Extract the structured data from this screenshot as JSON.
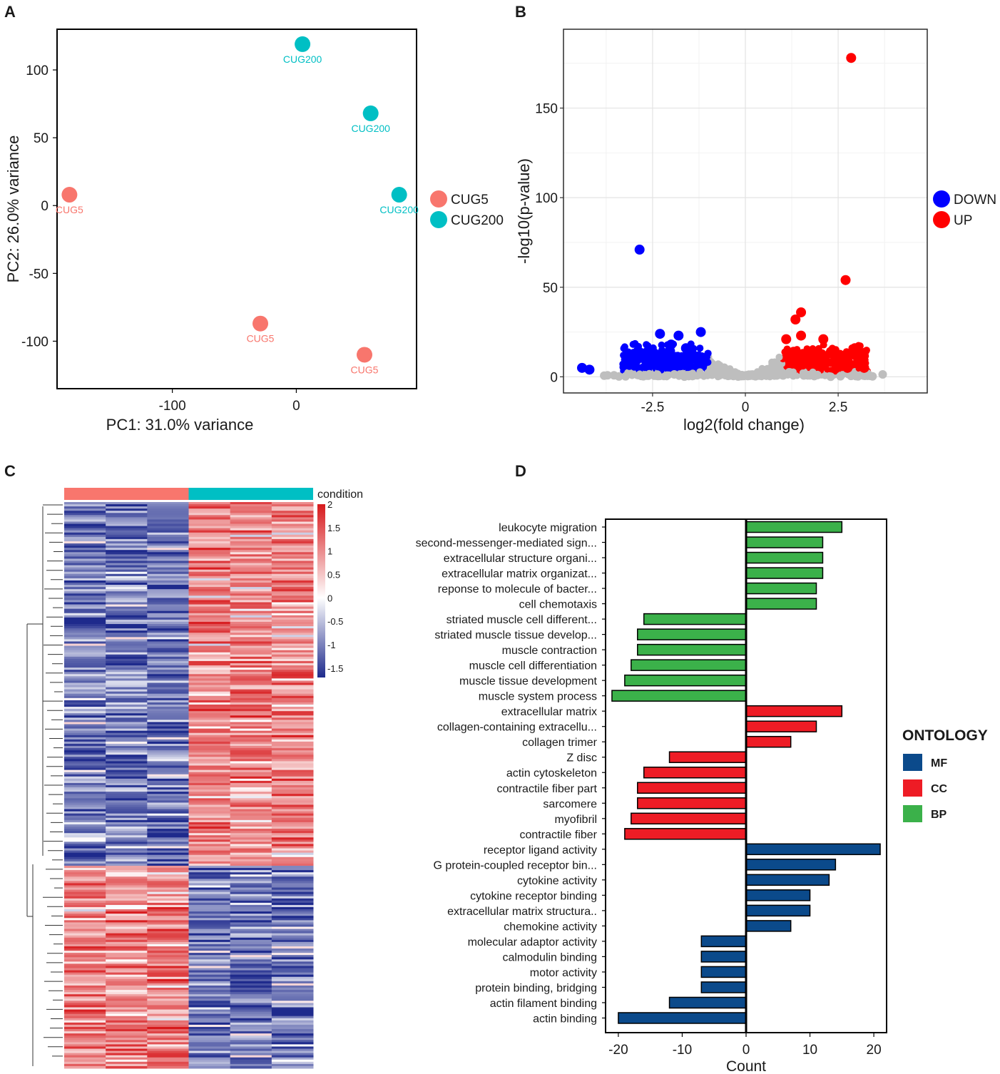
{
  "panels": {
    "a": "A",
    "b": "B",
    "c": "C",
    "d": "D"
  },
  "chart_data": [
    {
      "id": "A",
      "type": "scatter",
      "xlabel": "PC1: 31.0% variance",
      "ylabel": "PC2: 26.0% variance",
      "xlim": [
        -193,
        97
      ],
      "ylim": [
        -135,
        130
      ],
      "xticks": [
        -100,
        0
      ],
      "yticks": [
        100,
        50,
        0,
        -50,
        -100
      ],
      "legend": [
        "CUG5",
        "CUG200"
      ],
      "colors": {
        "CUG5": "#f8766d",
        "CUG200": "#00bfc4"
      },
      "points": [
        {
          "x": 5,
          "y": 119,
          "label": "CUG200"
        },
        {
          "x": 60,
          "y": 68,
          "label": "CUG200"
        },
        {
          "x": 83,
          "y": 8,
          "label": "CUG200"
        },
        {
          "x": -183,
          "y": 8,
          "label": "CUG5"
        },
        {
          "x": -29,
          "y": -87,
          "label": "CUG5"
        },
        {
          "x": 55,
          "y": -110,
          "label": "CUG5"
        }
      ]
    },
    {
      "id": "B",
      "type": "scatter",
      "xlabel": "log2(fold change)",
      "ylabel": "-log10(p-value)",
      "xlim": [
        -4.9,
        4.9
      ],
      "ylim": [
        -9,
        194
      ],
      "xticks": [
        -2.5,
        0,
        2.5
      ],
      "yticks": [
        0,
        50,
        100,
        150
      ],
      "legend": [
        "DOWN",
        "UP"
      ],
      "colors": {
        "DOWN": "#0000ff",
        "UP": "#ff0000",
        "NS": "#bebebe"
      },
      "points": [
        {
          "x": 2.85,
          "y": 178,
          "group": "UP"
        },
        {
          "x": 2.7,
          "y": 54,
          "group": "UP"
        },
        {
          "x": 1.5,
          "y": 36,
          "group": "UP"
        },
        {
          "x": 1.35,
          "y": 32,
          "group": "UP"
        },
        {
          "x": 1.1,
          "y": 21,
          "group": "UP"
        },
        {
          "x": 1.5,
          "y": 23,
          "group": "UP"
        },
        {
          "x": 2.1,
          "y": 21,
          "group": "UP"
        },
        {
          "x": 2.95,
          "y": 16,
          "group": "UP"
        },
        {
          "x": 2.45,
          "y": 9,
          "group": "UP"
        },
        {
          "x": 2.6,
          "y": 6,
          "group": "UP"
        },
        {
          "x": 2.75,
          "y": 5,
          "group": "UP"
        },
        {
          "x": 3.2,
          "y": 5,
          "group": "UP"
        },
        {
          "x": 1.8,
          "y": 11,
          "group": "UP"
        },
        {
          "x": 1.3,
          "y": 14,
          "group": "UP"
        },
        {
          "x": 2.3,
          "y": 13,
          "group": "UP"
        },
        {
          "x": -2.85,
          "y": 71,
          "group": "DOWN"
        },
        {
          "x": -2.3,
          "y": 24,
          "group": "DOWN"
        },
        {
          "x": -1.2,
          "y": 25,
          "group": "DOWN"
        },
        {
          "x": -1.8,
          "y": 23,
          "group": "DOWN"
        },
        {
          "x": -2.0,
          "y": 18,
          "group": "DOWN"
        },
        {
          "x": -1.6,
          "y": 16,
          "group": "DOWN"
        },
        {
          "x": -2.5,
          "y": 9,
          "group": "DOWN"
        },
        {
          "x": -4.4,
          "y": 5,
          "group": "DOWN"
        },
        {
          "x": -4.2,
          "y": 4,
          "group": "DOWN"
        },
        {
          "x": -1.4,
          "y": 12,
          "group": "DOWN"
        },
        {
          "x": -2.2,
          "y": 6,
          "group": "DOWN"
        }
      ]
    },
    {
      "id": "C",
      "type": "heatmap",
      "title": "condition",
      "groups": [
        "CUG5",
        "CUG200"
      ],
      "group_colors": [
        "#f8766d",
        "#00bfc4"
      ],
      "scale_ticks": [
        "2",
        "1.5",
        "1",
        "0.5",
        "0",
        "-0.5",
        "-1",
        "-1.5"
      ],
      "scale_range": [
        -1.7,
        2
      ],
      "columns": 6,
      "colors": {
        "low": "#1e2a8c",
        "mid": "#ffffff",
        "high": "#d7191c"
      }
    },
    {
      "id": "D",
      "type": "bar",
      "orientation": "horizontal",
      "xlabel": "Count",
      "xlim": [
        -22,
        22
      ],
      "xticks": [
        -20,
        -10,
        0,
        10,
        20
      ],
      "legend_title": "ONTOLOGY",
      "legend": [
        "MF",
        "CC",
        "BP"
      ],
      "colors": {
        "MF": "#0b4a8b",
        "CC": "#ee1c25",
        "BP": "#3bb14a"
      },
      "bars": [
        {
          "term": "leukocyte migration",
          "value": 15,
          "ontology": "BP"
        },
        {
          "term": "second-messenger-mediated sign...",
          "value": 12,
          "ontology": "BP"
        },
        {
          "term": "extracellular structure organi...",
          "value": 12,
          "ontology": "BP"
        },
        {
          "term": "extracellular matrix organizat...",
          "value": 12,
          "ontology": "BP"
        },
        {
          "term": "reponse to molecule of bacter...",
          "value": 11,
          "ontology": "BP"
        },
        {
          "term": "cell chemotaxis",
          "value": 11,
          "ontology": "BP"
        },
        {
          "term": "striated muscle cell different...",
          "value": -16,
          "ontology": "BP"
        },
        {
          "term": "striated muscle tissue develop...",
          "value": -17,
          "ontology": "BP"
        },
        {
          "term": "muscle contraction",
          "value": -17,
          "ontology": "BP"
        },
        {
          "term": "muscle cell differentiation",
          "value": -18,
          "ontology": "BP"
        },
        {
          "term": "muscle tissue development",
          "value": -19,
          "ontology": "BP"
        },
        {
          "term": "muscle system process",
          "value": -21,
          "ontology": "BP"
        },
        {
          "term": "extracellular matrix",
          "value": 15,
          "ontology": "CC"
        },
        {
          "term": "collagen-containing extracellu...",
          "value": 11,
          "ontology": "CC"
        },
        {
          "term": "collagen trimer",
          "value": 7,
          "ontology": "CC"
        },
        {
          "term": "Z disc",
          "value": -12,
          "ontology": "CC"
        },
        {
          "term": "actin cytoskeleton",
          "value": -16,
          "ontology": "CC"
        },
        {
          "term": "contractile fiber part",
          "value": -17,
          "ontology": "CC"
        },
        {
          "term": "sarcomere",
          "value": -17,
          "ontology": "CC"
        },
        {
          "term": "myofibril",
          "value": -18,
          "ontology": "CC"
        },
        {
          "term": "contractile fiber",
          "value": -19,
          "ontology": "CC"
        },
        {
          "term": "receptor ligand activity",
          "value": 21,
          "ontology": "MF"
        },
        {
          "term": "G protein-coupled receptor bin...",
          "value": 14,
          "ontology": "MF"
        },
        {
          "term": "cytokine activity",
          "value": 13,
          "ontology": "MF"
        },
        {
          "term": "cytokine receptor binding",
          "value": 10,
          "ontology": "MF"
        },
        {
          "term": "extracellular matrix structura..",
          "value": 10,
          "ontology": "MF"
        },
        {
          "term": "chemokine activity",
          "value": 7,
          "ontology": "MF"
        },
        {
          "term": "molecular adaptor activity",
          "value": -7,
          "ontology": "MF"
        },
        {
          "term": "calmodulin binding",
          "value": -7,
          "ontology": "MF"
        },
        {
          "term": "motor activity",
          "value": -7,
          "ontology": "MF"
        },
        {
          "term": "protein binding, bridging",
          "value": -7,
          "ontology": "MF"
        },
        {
          "term": "actin filament binding",
          "value": -12,
          "ontology": "MF"
        },
        {
          "term": "actin binding",
          "value": -20,
          "ontology": "MF"
        }
      ]
    }
  ]
}
